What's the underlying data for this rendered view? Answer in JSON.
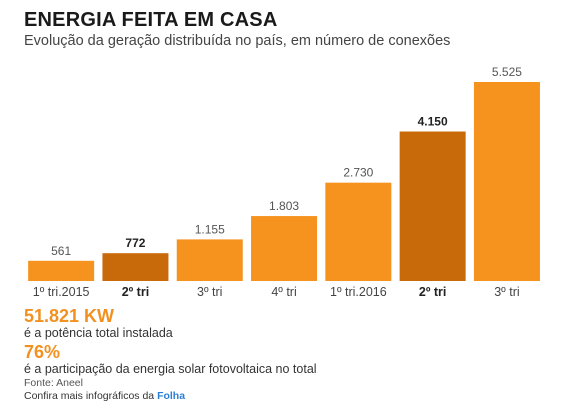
{
  "header": {
    "title": "ENERGIA FEITA EM CASA",
    "subtitle": "Evolução da geração distribuída no país, em número de conexões"
  },
  "colors": {
    "bar": "#f5931e",
    "bar_highlight": "#c96a0a",
    "axis": "#555555",
    "stat": "#f29120"
  },
  "chart_data": {
    "type": "bar",
    "title": "ENERGIA FEITA EM CASA",
    "subtitle": "Evolução da geração distribuída no país, em número de conexões",
    "xlabel": "",
    "ylabel": "",
    "categories": [
      "1º tri.2015",
      "2º tri",
      "3º tri",
      "4º tri",
      "1º tri.2016",
      "2º tri",
      "3º tri"
    ],
    "values": [
      561,
      772,
      1155,
      1803,
      2730,
      4150,
      5525
    ],
    "value_labels": [
      "561",
      "772",
      "1.155",
      "1.803",
      "2.730",
      "4.150",
      "5.525"
    ],
    "highlighted": [
      false,
      true,
      false,
      false,
      false,
      true,
      false
    ],
    "ylim": [
      0,
      5525
    ],
    "grid": false,
    "legend": "none"
  },
  "stats": [
    {
      "value": "51.821 KW",
      "description": "é a potência total instalada"
    },
    {
      "value": "76%",
      "description": "é a participação da energia solar fotovoltaica no total"
    }
  ],
  "footer": {
    "source": "Fonte: Aneel",
    "more_prefix": "Confira mais infográficos da ",
    "more_link": "Folha"
  }
}
